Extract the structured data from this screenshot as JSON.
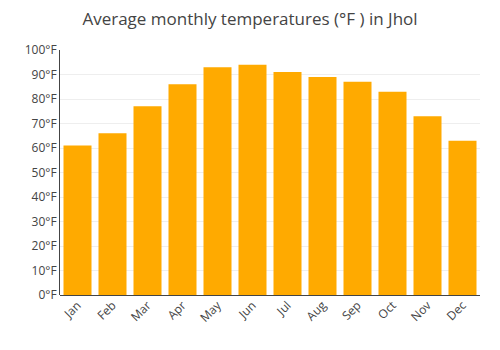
{
  "chart_data": {
    "type": "bar",
    "title": "Average monthly temperatures (°F ) in Jhol",
    "categories": [
      "Jan",
      "Feb",
      "Mar",
      "Apr",
      "May",
      "Jun",
      "Jul",
      "Aug",
      "Sep",
      "Oct",
      "Nov",
      "Dec"
    ],
    "values": [
      61,
      66,
      77,
      86,
      93,
      94,
      91,
      89,
      87,
      83,
      73,
      63
    ],
    "color": "#FFAA00",
    "ylim": [
      0,
      100
    ],
    "yticks": [
      {
        "value": 0,
        "label": "0°F"
      },
      {
        "value": 10,
        "label": "10°F"
      },
      {
        "value": 20,
        "label": "20°F"
      },
      {
        "value": 30,
        "label": "30°F"
      },
      {
        "value": 40,
        "label": "40°F"
      },
      {
        "value": 50,
        "label": "50°F"
      },
      {
        "value": 60,
        "label": "60°F"
      },
      {
        "value": 70,
        "label": "70°F"
      },
      {
        "value": 80,
        "label": "80°F"
      },
      {
        "value": 90,
        "label": "90°F"
      },
      {
        "value": 100,
        "label": "100°F"
      }
    ],
    "grid": true
  }
}
